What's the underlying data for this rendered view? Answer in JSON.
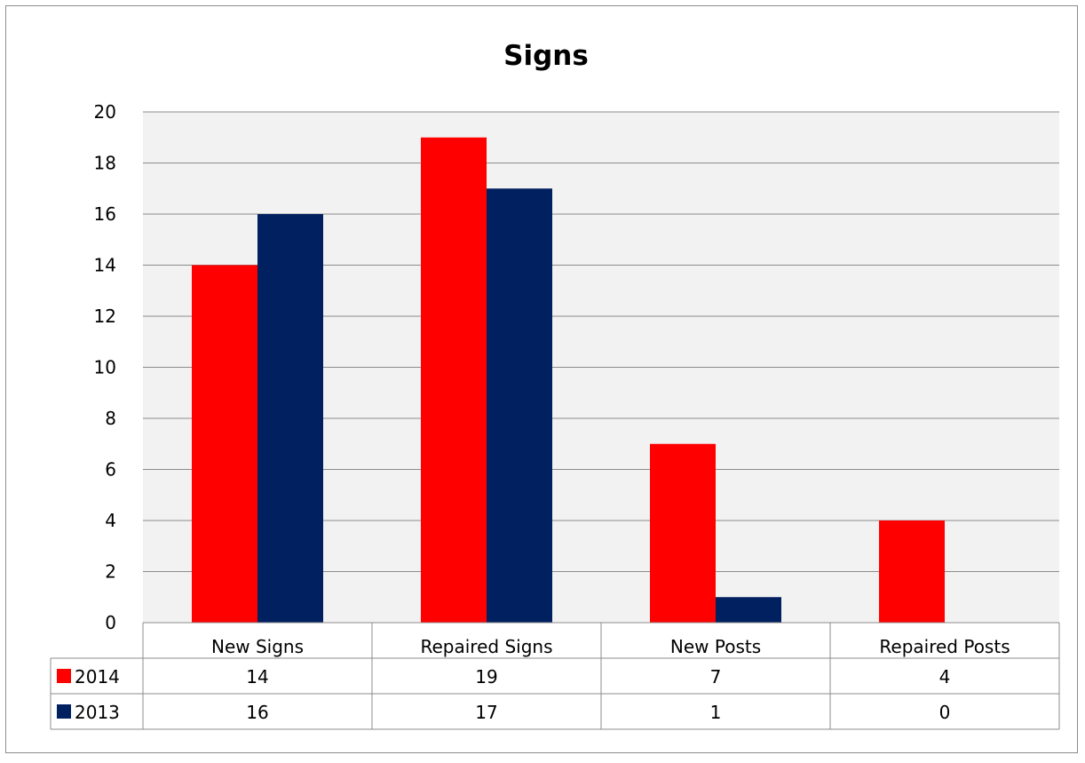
{
  "chart_data": {
    "type": "bar",
    "title": "Signs",
    "xlabel": "",
    "ylabel": "",
    "categories": [
      "New Signs",
      "Repaired Signs",
      "New Posts",
      "Repaired Posts"
    ],
    "series": [
      {
        "name": "2014",
        "values": [
          14,
          19,
          7,
          4
        ],
        "color": "#ff0000"
      },
      {
        "name": "2013",
        "values": [
          16,
          17,
          1,
          0
        ],
        "color": "#002060"
      }
    ],
    "ylim": [
      0,
      20
    ],
    "yticks": [
      0,
      2,
      4,
      6,
      8,
      10,
      12,
      14,
      16,
      18,
      20
    ],
    "grid": true,
    "legend": "data-table",
    "plot_background": "#f2f2f2"
  }
}
